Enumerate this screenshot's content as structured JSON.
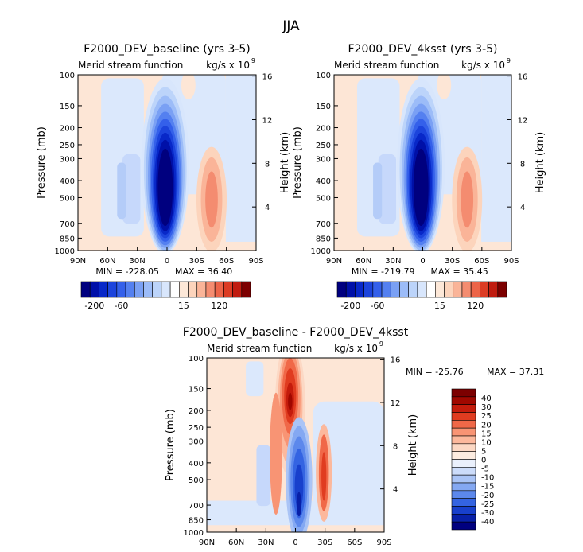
{
  "figure_title": "JJA",
  "colors": {
    "blues": [
      "#00007f",
      "#0010a8",
      "#0828c8",
      "#1c44dc",
      "#3460ea",
      "#5480f0",
      "#7aa0f4",
      "#9cbcf8",
      "#bcd4fa",
      "#d8e6fc"
    ],
    "whites": [
      "#ffffff",
      "#fde8d8"
    ],
    "reds": [
      "#fcd4bc",
      "#fab498",
      "#f48c70",
      "#ec6448",
      "#dc3c24",
      "#c01c10",
      "#9c0808",
      "#7c0000"
    ],
    "diff_scale": [
      "#7c0000",
      "#a00800",
      "#c41c0c",
      "#e03c20",
      "#f06848",
      "#f89474",
      "#fcb89c",
      "#fcd8c4",
      "#fdece0",
      "#eaf0fc",
      "#ccdcfa",
      "#aac4f6",
      "#84a8f2",
      "#5c88ec",
      "#3464e2",
      "#1840cc",
      "#0820a8",
      "#00007f"
    ]
  },
  "chart_data": [
    {
      "type": "contour",
      "title": "F2000_DEV_baseline (yrs 3-5)",
      "subtitle_left": "Merid stream function",
      "units_text": "kg/s x 10",
      "units_exp": "9",
      "ylabel": "Pressure (mb)",
      "ylabel_right": "Height (km)",
      "x_ticks": [
        "90N",
        "60N",
        "30N",
        "0",
        "30S",
        "60S",
        "90S"
      ],
      "y_ticks": [
        "100",
        "150",
        "200",
        "250",
        "300",
        "400",
        "500",
        "700",
        "850",
        "1000"
      ],
      "y_right_ticks": [
        "16",
        "12",
        "8",
        "4"
      ],
      "min_text": "MIN = -228.05",
      "max_text": "MAX = 36.40",
      "min": -228.05,
      "max": 36.4,
      "colorbar_labels": [
        "-200",
        "-60",
        "15",
        "120"
      ]
    },
    {
      "type": "contour",
      "title": "F2000_DEV_4ksst (yrs 3-5)",
      "subtitle_left": "Merid stream function",
      "units_text": "kg/s x 10",
      "units_exp": "9",
      "ylabel": "Pressure (mb)",
      "ylabel_right": "Height (km)",
      "x_ticks": [
        "90N",
        "60N",
        "30N",
        "0",
        "30S",
        "60S",
        "90S"
      ],
      "y_ticks": [
        "100",
        "150",
        "200",
        "250",
        "300",
        "400",
        "500",
        "700",
        "850",
        "1000"
      ],
      "y_right_ticks": [
        "16",
        "12",
        "8",
        "4"
      ],
      "min_text": "MIN = -219.79",
      "max_text": "MAX = 35.45",
      "min": -219.79,
      "max": 35.45,
      "colorbar_labels": [
        "-200",
        "-60",
        "15",
        "120"
      ]
    },
    {
      "type": "contour",
      "title": "F2000_DEV_baseline - F2000_DEV_4ksst",
      "subtitle_left": "Merid stream function",
      "units_text": "kg/s x 10",
      "units_exp": "9",
      "ylabel": "Pressure (mb)",
      "ylabel_right": "Height (km)",
      "x_ticks": [
        "90N",
        "60N",
        "30N",
        "0",
        "30S",
        "60S",
        "90S"
      ],
      "y_ticks": [
        "100",
        "150",
        "200",
        "250",
        "300",
        "400",
        "500",
        "700",
        "850",
        "1000"
      ],
      "y_right_ticks": [
        "16",
        "12",
        "8",
        "4"
      ],
      "min_text": "MIN = -25.76",
      "max_text": "MAX = 37.31",
      "min": -25.76,
      "max": 37.31,
      "colorbar_labels": [
        "40",
        "30",
        "25",
        "20",
        "15",
        "10",
        "5",
        "0",
        "-5",
        "-10",
        "-15",
        "-20",
        "-25",
        "-30",
        "-40"
      ]
    }
  ]
}
